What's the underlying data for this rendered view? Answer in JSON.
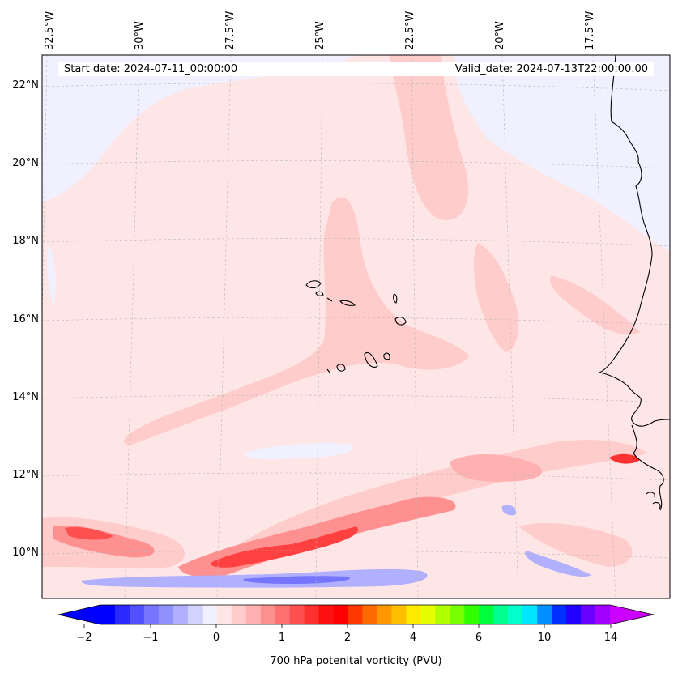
{
  "header": {
    "start_date": "Start date: 2024-07-11_00:00:00",
    "valid_date": "Valid_date: 2024-07-13T22:00:00.00"
  },
  "longitude_labels": [
    "32.5°W",
    "30°W",
    "27.5°W",
    "25°W",
    "22.5°W",
    "20°W",
    "17.5°W"
  ],
  "latitude_labels": [
    "22°N",
    "20°N",
    "18°N",
    "16°N",
    "14°N",
    "12°N",
    "10°N"
  ],
  "colorbar": {
    "title": "700 hPa potenital vorticity (PVU)",
    "tick_labels": [
      "−2",
      "−1",
      "0",
      "1",
      "2",
      "4",
      "6",
      "10",
      "14"
    ],
    "colors": [
      "#0000ff",
      "#2a2aff",
      "#5050ff",
      "#7575ff",
      "#9090ff",
      "#b0b0ff",
      "#d2d2ff",
      "#f0f0ff",
      "#ffe6e6",
      "#ffcccc",
      "#ffb0b0",
      "#ff9090",
      "#ff7070",
      "#ff5050",
      "#ff3030",
      "#ff1010",
      "#ff0000",
      "#ff3800",
      "#ff6a00",
      "#ff9800",
      "#ffbf00",
      "#ffea00",
      "#e6ff00",
      "#b0ff00",
      "#78ff00",
      "#30ff00",
      "#00ff3a",
      "#00ff90",
      "#00ffcc",
      "#00e6ff",
      "#0090ff",
      "#0030ff",
      "#2200ff",
      "#6a00ff",
      "#a000ff"
    ],
    "under_color": "#0000ff",
    "over_color": "#cc00ff"
  }
}
